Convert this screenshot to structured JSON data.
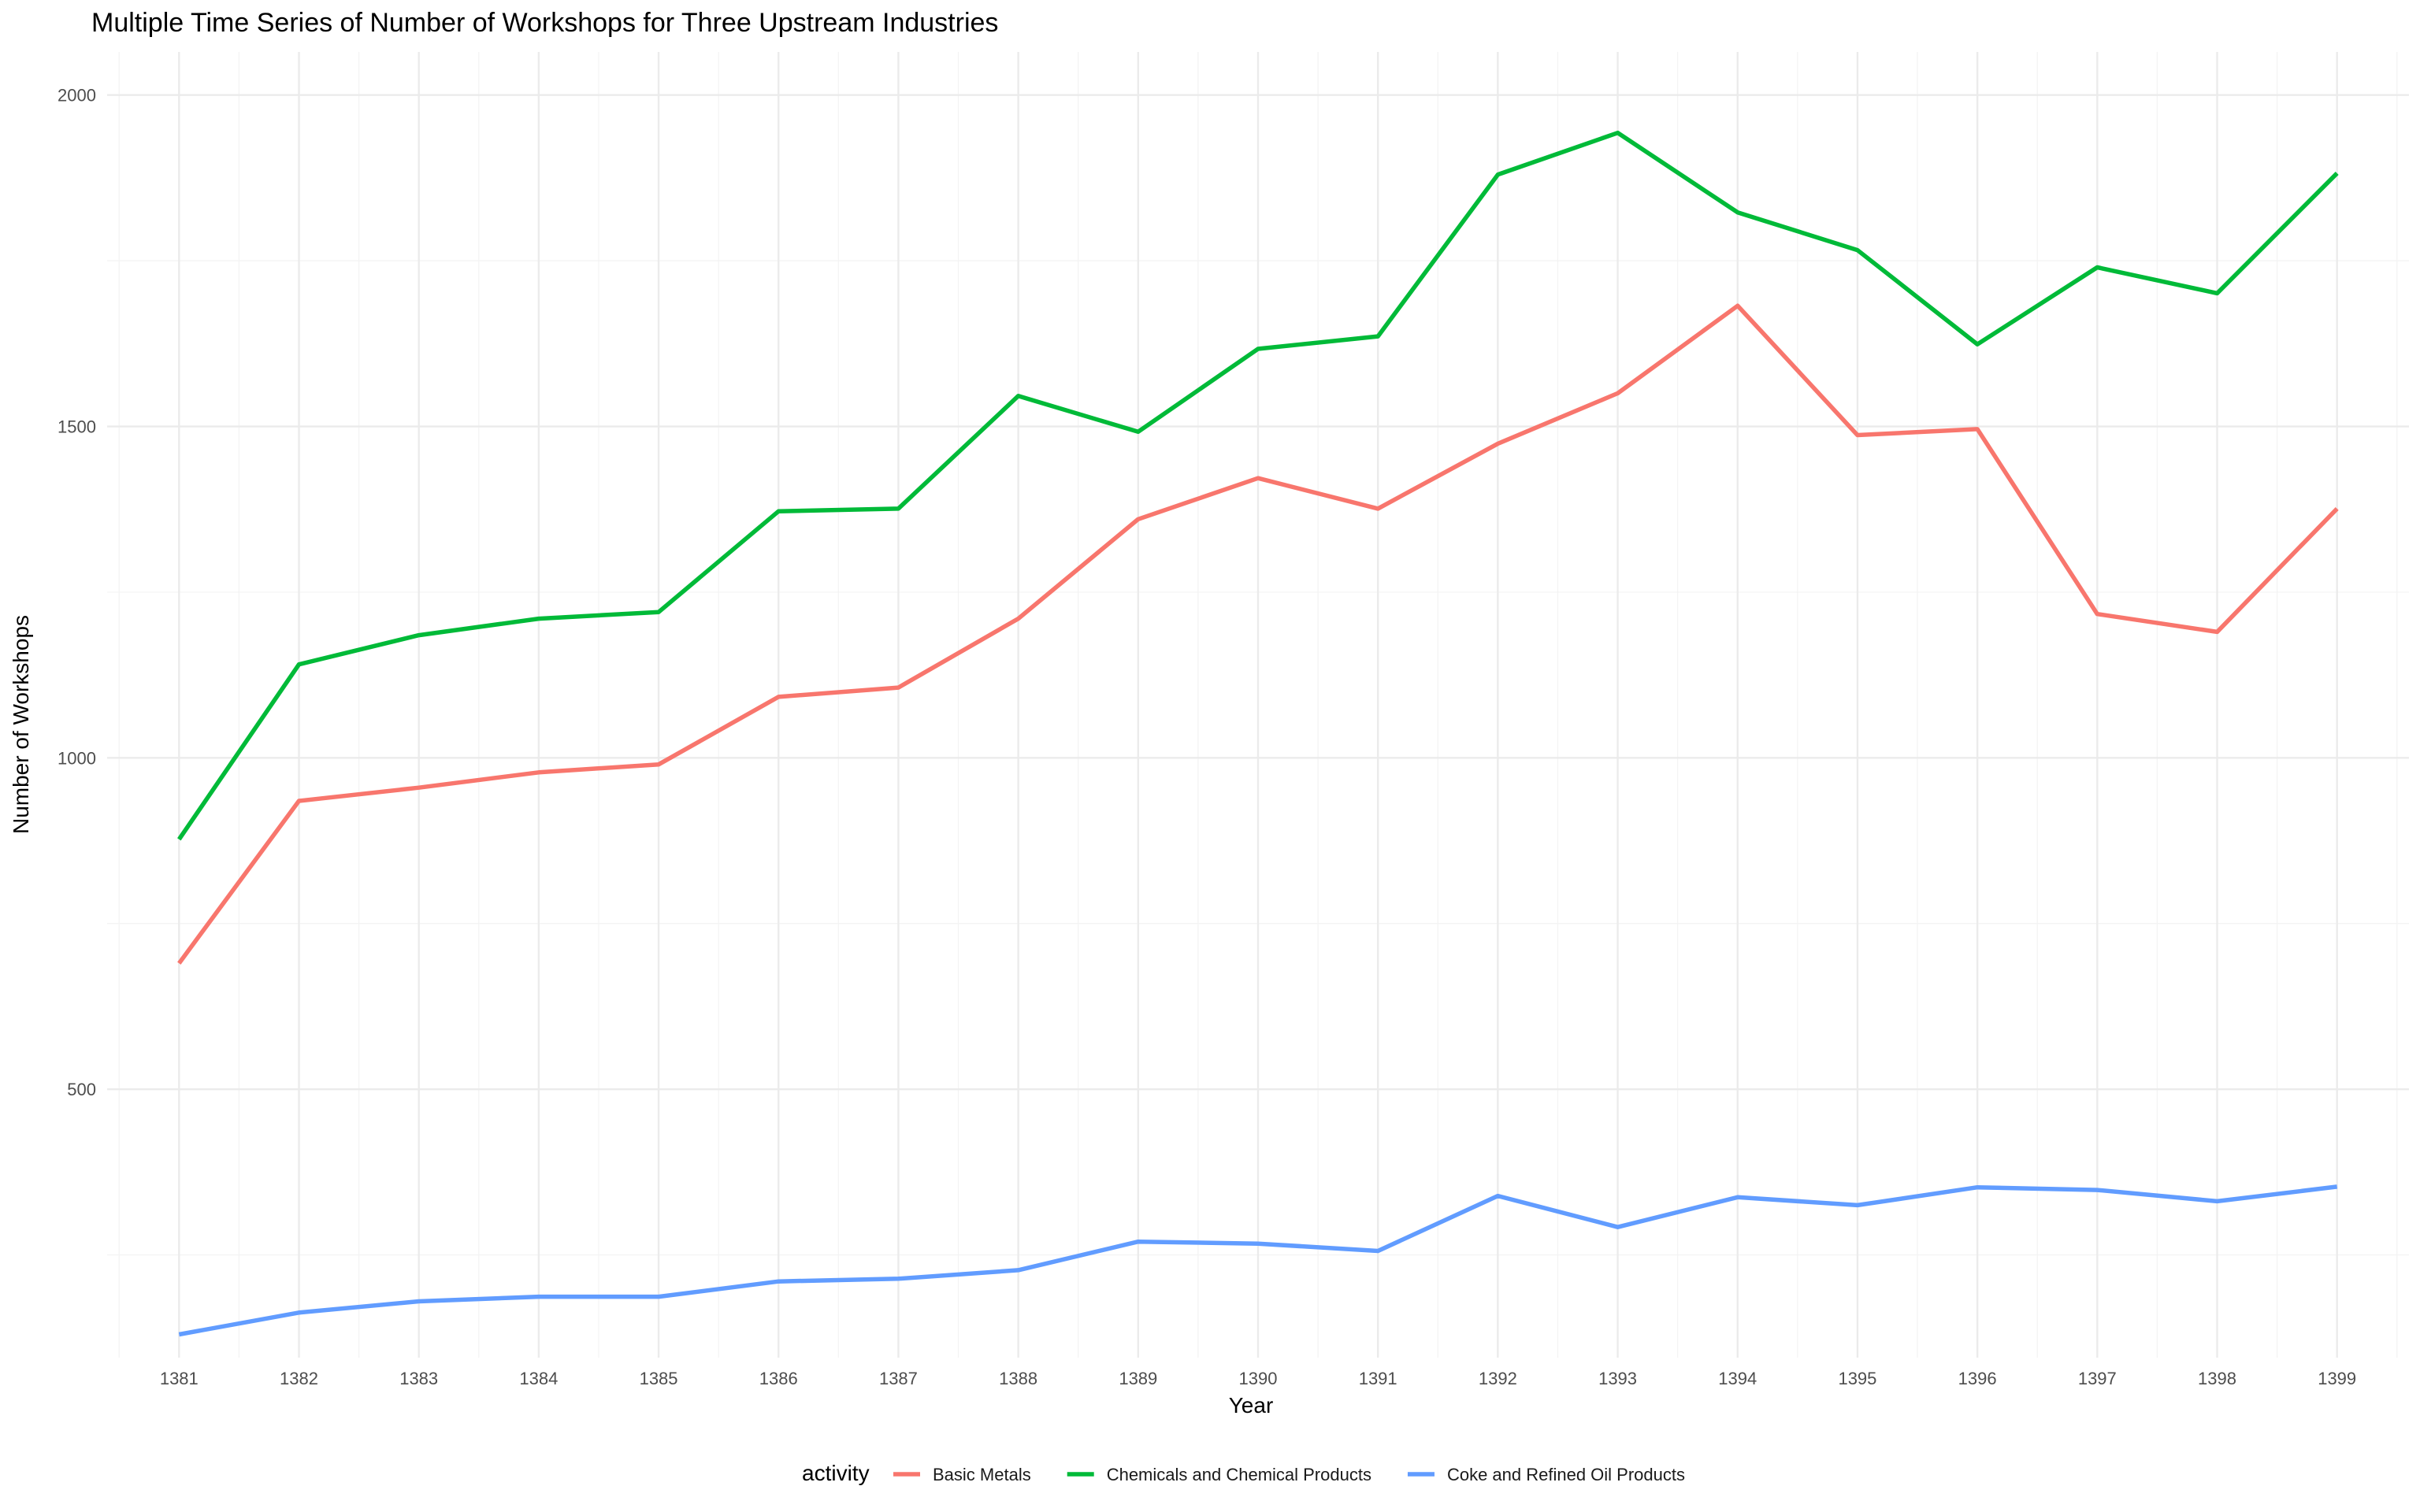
{
  "chart_data": {
    "type": "line",
    "title": "Multiple Time Series of Number of Workshops for Three Upstream Industries",
    "xlabel": "Year",
    "ylabel": "Number of Workshops",
    "x": [
      "1381",
      "1382",
      "1383",
      "1384",
      "1385",
      "1386",
      "1387",
      "1388",
      "1389",
      "1390",
      "1391",
      "1392",
      "1393",
      "1394",
      "1395",
      "1396",
      "1397",
      "1398",
      "1399"
    ],
    "yticks": [
      500,
      1000,
      1500,
      2000
    ],
    "ylim": [
      95,
      2065
    ],
    "grid": true,
    "legend": {
      "title": "activity",
      "position": "bottom"
    },
    "series": [
      {
        "name": "Basic Metals",
        "color": "#F8766D",
        "values": [
          690,
          935,
          955,
          978,
          990,
          1092,
          1106,
          1210,
          1360,
          1422,
          1376,
          1474,
          1550,
          1682,
          1487,
          1496,
          1217,
          1190,
          1376
        ]
      },
      {
        "name": "Chemicals and Chemical Products",
        "color": "#00BA38",
        "values": [
          877,
          1141,
          1185,
          1210,
          1220,
          1372,
          1376,
          1546,
          1492,
          1617,
          1636,
          1880,
          1943,
          1823,
          1766,
          1624,
          1740,
          1701,
          1882
        ]
      },
      {
        "name": "Coke and Refined Oil Products",
        "color": "#619CFF",
        "values": [
          130,
          163,
          180,
          187,
          187,
          210,
          214,
          227,
          270,
          267,
          256,
          339,
          292,
          337,
          325,
          352,
          348,
          331,
          353
        ]
      }
    ]
  }
}
